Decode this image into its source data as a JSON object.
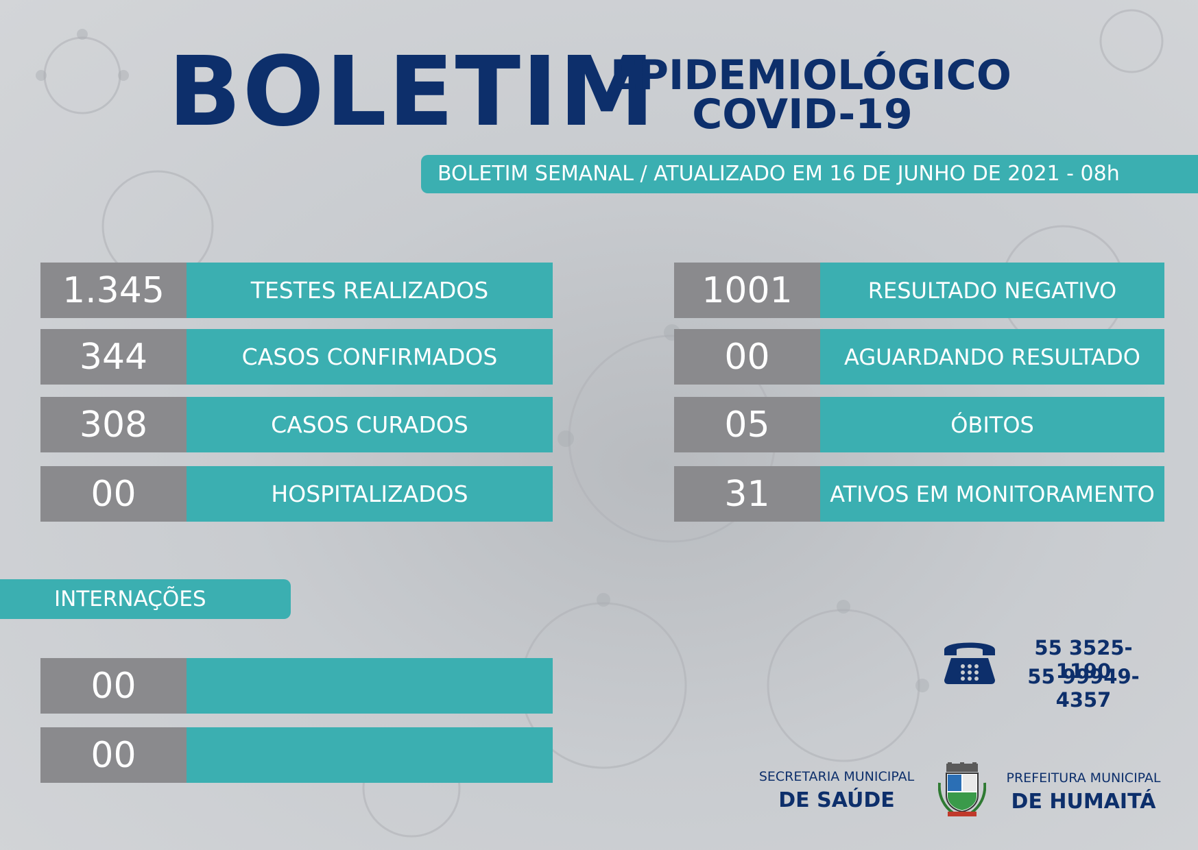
{
  "header": {
    "title_main": "BOLETIM",
    "title_line1": "EPIDEMIOLÓGICO",
    "title_line2": "COVID-19",
    "ribbon": "BOLETIM SEMANAL / ATUALIZADO EM 16 DE JUNHO DE 2021 - 08h"
  },
  "left_stats": [
    {
      "value": "1.345",
      "label": "TESTES REALIZADOS"
    },
    {
      "value": "344",
      "label": "CASOS CONFIRMADOS"
    },
    {
      "value": "308",
      "label": "CASOS CURADOS"
    },
    {
      "value": "00",
      "label": "HOSPITALIZADOS"
    }
  ],
  "right_stats": [
    {
      "value": "1001",
      "label": "RESULTADO NEGATIVO"
    },
    {
      "value": "00",
      "label": "AGUARDANDO RESULTADO"
    },
    {
      "value": "05",
      "label": "ÓBITOS"
    },
    {
      "value": "31",
      "label": "ATIVOS EM MONITORAMENTO"
    }
  ],
  "internacoes": {
    "label": "INTERNAÇÕES",
    "rows": [
      {
        "value": "00",
        "label": ""
      },
      {
        "value": "00",
        "label": ""
      }
    ]
  },
  "contact": {
    "icon": "phone-icon",
    "phone1": "55 3525-1190",
    "phone2": "55 99949-4357"
  },
  "footer": {
    "secretaria_small": "SECRETARIA MUNICIPAL",
    "secretaria_big": "DE SAÚDE",
    "prefeitura_small": "PREFEITURA MUNICIPAL",
    "prefeitura_big": "DE HUMAITÁ"
  },
  "colors": {
    "navy": "#0d2f6b",
    "teal": "#3bafb1",
    "gray": "#8a8a8d"
  }
}
